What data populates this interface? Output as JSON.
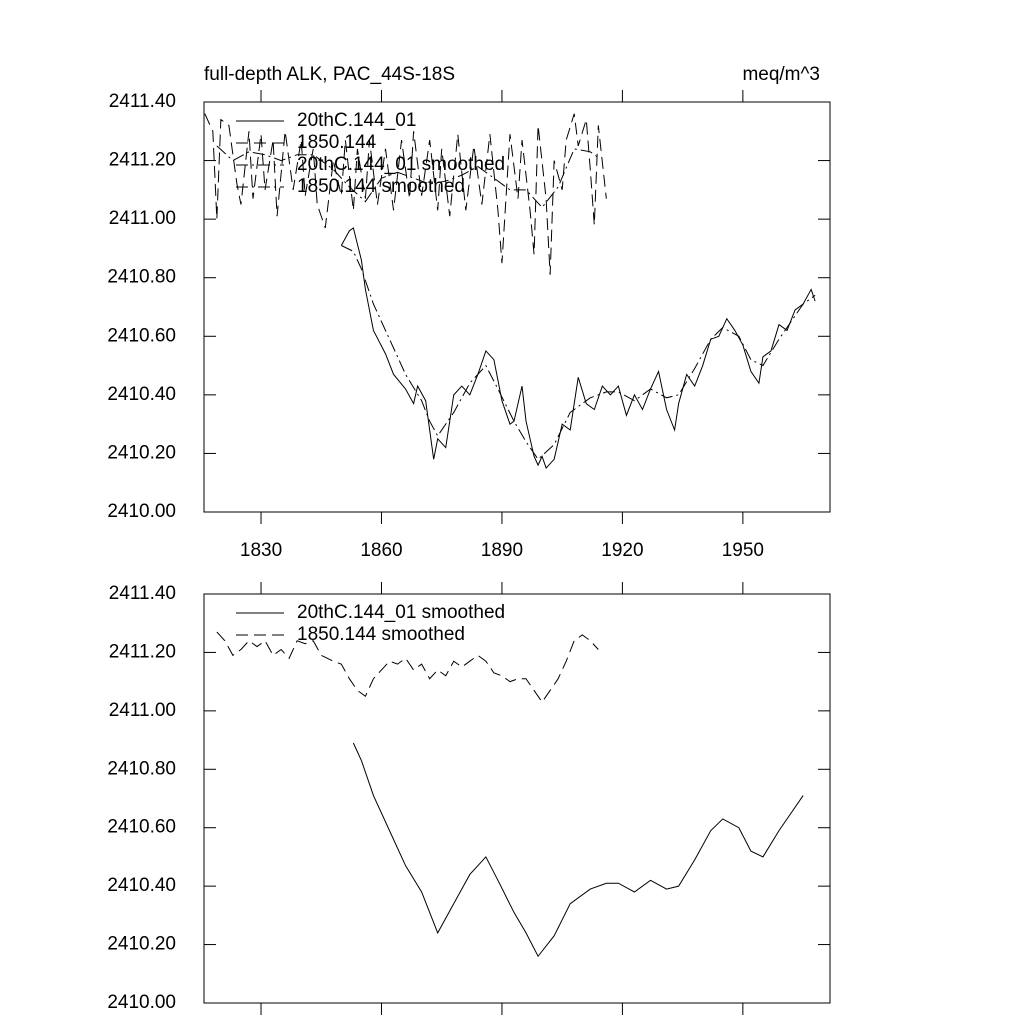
{
  "chart_data": [
    {
      "type": "line",
      "title": "full-depth ALK, PAC_44S-18S",
      "unit_label": "meq/m^3",
      "xlim": [
        1815.8,
        1971.7
      ],
      "xticks": [
        1830,
        1860,
        1890,
        1920,
        1950
      ],
      "ylim": [
        2410.0,
        2411.4
      ],
      "yticks": [
        {
          "value": 2410.0,
          "label": "2410.00"
        },
        {
          "value": 2410.2,
          "label": "2410.20"
        },
        {
          "value": 2410.4,
          "label": "2410.40"
        },
        {
          "value": 2410.6,
          "label": "2410.60"
        },
        {
          "value": 2410.8,
          "label": "2410.80"
        },
        {
          "value": 2411.0,
          "label": "2411.00"
        },
        {
          "value": 2411.2,
          "label": "2411.20"
        },
        {
          "value": 2411.4,
          "label": "2411.40"
        }
      ],
      "show_xtick_labels": true,
      "series": [
        {
          "name": "20thC.144_01",
          "color": "#000000",
          "dash": "solid",
          "x": [
            1850,
            1852,
            1853,
            1855,
            1856,
            1858,
            1861,
            1863,
            1866,
            1868,
            1869,
            1871,
            1873,
            1874,
            1876,
            1878,
            1880,
            1882,
            1884,
            1886,
            1888,
            1890,
            1892,
            1893,
            1895,
            1896,
            1898,
            1899,
            1900,
            1901,
            1903,
            1905,
            1907,
            1909,
            1911,
            1913,
            1915,
            1917,
            1919,
            1921,
            1923,
            1925,
            1927,
            1929,
            1931,
            1933,
            1934,
            1936,
            1938,
            1940,
            1942,
            1944,
            1946,
            1948,
            1950,
            1952,
            1954,
            1955,
            1957,
            1959,
            1961,
            1963,
            1965,
            1967,
            1968
          ],
          "values": [
            2410.91,
            2410.96,
            2410.97,
            2410.86,
            2410.76,
            2410.62,
            2410.54,
            2410.47,
            2410.42,
            2410.37,
            2410.43,
            2410.38,
            2410.18,
            2410.25,
            2410.22,
            2410.4,
            2410.43,
            2410.4,
            2410.47,
            2410.55,
            2410.52,
            2410.38,
            2410.3,
            2410.31,
            2410.43,
            2410.31,
            2410.19,
            2410.16,
            2410.19,
            2410.15,
            2410.18,
            2410.3,
            2410.28,
            2410.46,
            2410.37,
            2410.35,
            2410.43,
            2410.4,
            2410.43,
            2410.33,
            2410.4,
            2410.35,
            2410.42,
            2410.48,
            2410.35,
            2410.28,
            2410.37,
            2410.47,
            2410.43,
            2410.5,
            2410.59,
            2410.6,
            2410.66,
            2410.62,
            2410.57,
            2410.48,
            2410.44,
            2410.53,
            2410.55,
            2410.64,
            2410.62,
            2410.69,
            2410.71,
            2410.76,
            2410.72
          ]
        },
        {
          "name": "1850.144",
          "color": "#000000",
          "dash": "dash",
          "x": [
            1816,
            1818,
            1819,
            1820,
            1822,
            1824,
            1825,
            1827,
            1828,
            1830,
            1831,
            1833,
            1834,
            1836,
            1838,
            1840,
            1841,
            1843,
            1844,
            1846,
            1848,
            1850,
            1851,
            1853,
            1854,
            1856,
            1857,
            1859,
            1861,
            1863,
            1865,
            1867,
            1868,
            1870,
            1872,
            1874,
            1875,
            1877,
            1879,
            1881,
            1883,
            1885,
            1887,
            1889,
            1890,
            1892,
            1894,
            1895,
            1897,
            1898,
            1899,
            1901,
            1902,
            1903,
            1905,
            1906,
            1908,
            1909,
            1911,
            1912,
            1913,
            1914,
            1916
          ],
          "values": [
            2411.36,
            2411.3,
            2411.0,
            2411.34,
            2411.32,
            2411.12,
            2411.05,
            2411.3,
            2411.07,
            2411.29,
            2411.1,
            2411.27,
            2411.01,
            2411.3,
            2411.1,
            2411.27,
            2411.08,
            2411.24,
            2411.05,
            2410.97,
            2411.2,
            2411.08,
            2411.27,
            2411.03,
            2411.24,
            2411.07,
            2411.27,
            2411.05,
            2411.24,
            2411.03,
            2411.27,
            2411.07,
            2411.3,
            2411.08,
            2411.27,
            2411.03,
            2411.24,
            2411.01,
            2411.29,
            2411.03,
            2411.25,
            2411.05,
            2411.29,
            2411.03,
            2410.85,
            2411.29,
            2411.07,
            2411.27,
            2411.03,
            2410.88,
            2411.32,
            2411.07,
            2410.81,
            2411.2,
            2411.1,
            2411.27,
            2411.36,
            2411.25,
            2411.34,
            2411.17,
            2410.98,
            2411.32,
            2411.07
          ]
        },
        {
          "name": "20thC.144_01 smoothed",
          "color": "#000000",
          "dash": "dashdot",
          "x": [
            1850,
            1853,
            1855,
            1858,
            1862,
            1866,
            1870,
            1872,
            1874,
            1878,
            1882,
            1886,
            1889,
            1893,
            1896,
            1899,
            1903,
            1907,
            1912,
            1916,
            1919,
            1923,
            1927,
            1931,
            1934,
            1938,
            1942,
            1945,
            1949,
            1952,
            1955,
            1959,
            1962,
            1965,
            1968
          ],
          "values": [
            2410.91,
            2410.89,
            2410.83,
            2410.71,
            2410.59,
            2410.47,
            2410.38,
            2410.31,
            2410.26,
            2410.34,
            2410.44,
            2410.5,
            2410.42,
            2410.31,
            2410.24,
            2410.18,
            2410.23,
            2410.34,
            2410.39,
            2410.41,
            2410.41,
            2410.38,
            2410.42,
            2410.39,
            2410.4,
            2410.49,
            2410.59,
            2410.63,
            2410.6,
            2410.52,
            2410.5,
            2410.59,
            2410.65,
            2410.71,
            2410.74
          ]
        },
        {
          "name": "1850.144 smoothed",
          "color": "#000000",
          "dash": "dashdot",
          "x": [
            1819,
            1823,
            1827,
            1831,
            1835,
            1839,
            1843,
            1848,
            1852,
            1856,
            1860,
            1864,
            1868,
            1872,
            1876,
            1880,
            1884,
            1888,
            1892,
            1896,
            1900,
            1904,
            1908,
            1912,
            1914
          ],
          "values": [
            2411.25,
            2411.2,
            2411.23,
            2411.22,
            2411.2,
            2411.22,
            2411.22,
            2411.17,
            2411.11,
            2411.06,
            2411.14,
            2411.16,
            2411.14,
            2411.12,
            2411.13,
            2411.15,
            2411.18,
            2411.14,
            2411.1,
            2411.1,
            2411.04,
            2411.11,
            2411.24,
            2411.23,
            2411.21
          ]
        }
      ]
    },
    {
      "type": "line",
      "xlim": [
        1815.8,
        1971.7
      ],
      "xticks": [
        1830,
        1860,
        1890,
        1920,
        1950
      ],
      "ylim": [
        2410.0,
        2411.4
      ],
      "yticks": [
        {
          "value": 2410.0,
          "label": "2410.00"
        },
        {
          "value": 2410.2,
          "label": "2410.20"
        },
        {
          "value": 2410.4,
          "label": "2410.40"
        },
        {
          "value": 2410.6,
          "label": "2410.60"
        },
        {
          "value": 2410.8,
          "label": "2410.80"
        },
        {
          "value": 2411.0,
          "label": "2411.00"
        },
        {
          "value": 2411.2,
          "label": "2411.20"
        },
        {
          "value": 2411.4,
          "label": "2411.40"
        }
      ],
      "show_xtick_labels": false,
      "series": [
        {
          "name": "20thC.144_01 smoothed",
          "color": "#000000",
          "dash": "solid",
          "x": [
            1853,
            1855,
            1858,
            1862,
            1866,
            1870,
            1872,
            1874,
            1878,
            1882,
            1886,
            1889,
            1893,
            1896,
            1899,
            1903,
            1907,
            1912,
            1916,
            1919,
            1923,
            1927,
            1931,
            1934,
            1938,
            1942,
            1945,
            1949,
            1952,
            1955,
            1959,
            1962,
            1965
          ],
          "values": [
            2410.89,
            2410.83,
            2410.71,
            2410.59,
            2410.47,
            2410.38,
            2410.31,
            2410.24,
            2410.34,
            2410.44,
            2410.5,
            2410.42,
            2410.31,
            2410.24,
            2410.16,
            2410.23,
            2410.34,
            2410.39,
            2410.41,
            2410.41,
            2410.38,
            2410.42,
            2410.39,
            2410.4,
            2410.49,
            2410.59,
            2410.63,
            2410.6,
            2410.52,
            2410.5,
            2410.59,
            2410.65,
            2410.71
          ]
        },
        {
          "name": "1850.144 smoothed",
          "color": "#000000",
          "dash": "dash",
          "x": [
            1819,
            1821,
            1823,
            1825,
            1827,
            1829,
            1831,
            1833,
            1835,
            1837,
            1839,
            1841,
            1843,
            1845,
            1848,
            1850,
            1852,
            1854,
            1856,
            1858,
            1860,
            1862,
            1864,
            1866,
            1868,
            1870,
            1872,
            1874,
            1876,
            1878,
            1880,
            1882,
            1884,
            1886,
            1888,
            1890,
            1892,
            1894,
            1896,
            1898,
            1900,
            1902,
            1904,
            1906,
            1908,
            1910,
            1912,
            1914
          ],
          "values": [
            2411.27,
            2411.24,
            2411.19,
            2411.21,
            2411.24,
            2411.22,
            2411.24,
            2411.19,
            2411.21,
            2411.18,
            2411.24,
            2411.23,
            2411.24,
            2411.19,
            2411.17,
            2411.16,
            2411.11,
            2411.07,
            2411.05,
            2411.11,
            2411.14,
            2411.17,
            2411.16,
            2411.18,
            2411.14,
            2411.16,
            2411.11,
            2411.14,
            2411.12,
            2411.17,
            2411.15,
            2411.17,
            2411.19,
            2411.17,
            2411.13,
            2411.12,
            2411.1,
            2411.11,
            2411.11,
            2411.07,
            2411.03,
            2411.07,
            2411.11,
            2411.17,
            2411.24,
            2411.26,
            2411.24,
            2411.21
          ]
        }
      ]
    }
  ]
}
